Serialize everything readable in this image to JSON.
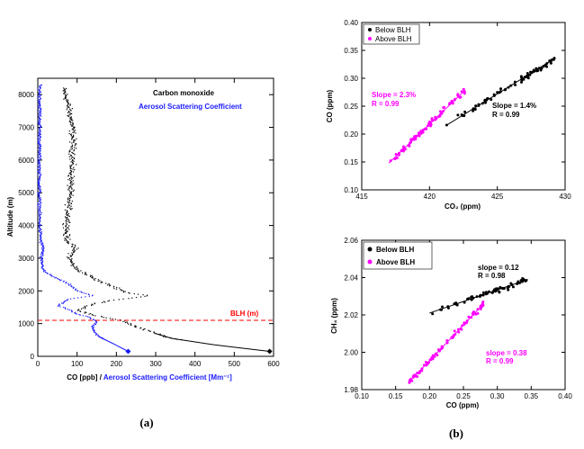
{
  "colors": {
    "black": "#000000",
    "blue": "#1a1aff",
    "magenta": "#ff00ff",
    "red": "#ff0000"
  },
  "chart_data": [
    {
      "type": "scatter",
      "panel_label": "(a)",
      "ylabel": "Altitude (m)",
      "xlabel_co": "CO [ppb]",
      "xlabel_sep": "/",
      "xlabel_aer": "Aerosol Scattering Coefficient [Mm⁻¹]",
      "xlim": [
        0,
        600
      ],
      "ylim": [
        0,
        8500
      ],
      "x_ticks": [
        0,
        100,
        200,
        300,
        400,
        500,
        600
      ],
      "y_ticks": [
        0,
        1000,
        2000,
        3000,
        4000,
        5000,
        6000,
        7000,
        8000
      ],
      "grid": false,
      "legend": {
        "placement": "top-right",
        "entries": [
          "Carbon monoxide",
          "Aerosol Scattering Coefficient"
        ]
      },
      "annotations": [
        {
          "text": "BLH (m)",
          "x": 520,
          "y": 1100,
          "color": "#ff0000"
        }
      ],
      "blh": 1100,
      "series": [
        {
          "name": "Carbon monoxide",
          "color": "#000000",
          "profile": [
            [
              8200,
              65
            ],
            [
              7800,
              75
            ],
            [
              7400,
              82
            ],
            [
              7000,
              88
            ],
            [
              6500,
              90
            ],
            [
              6000,
              88
            ],
            [
              5500,
              85
            ],
            [
              5000,
              82
            ],
            [
              4500,
              78
            ],
            [
              4000,
              75
            ],
            [
              3700,
              72
            ],
            [
              3500,
              78
            ],
            [
              3300,
              95
            ],
            [
              3000,
              80
            ],
            [
              2700,
              95
            ],
            [
              2500,
              125
            ],
            [
              2300,
              155
            ],
            [
              2100,
              200
            ],
            [
              1950,
              225
            ],
            [
              1850,
              285
            ],
            [
              1700,
              180
            ],
            [
              1550,
              130
            ],
            [
              1400,
              105
            ],
            [
              1250,
              140
            ],
            [
              1100,
              215
            ],
            [
              900,
              250
            ],
            [
              700,
              300
            ],
            [
              550,
              340
            ],
            [
              350,
              450
            ],
            [
              150,
              590
            ]
          ]
        },
        {
          "name": "Aerosol Scattering Coefficient",
          "color": "#1a1aff",
          "profile": [
            [
              8300,
              5
            ],
            [
              7000,
              5
            ],
            [
              6000,
              4
            ],
            [
              5000,
              4
            ],
            [
              4000,
              5
            ],
            [
              3500,
              8
            ],
            [
              3300,
              14
            ],
            [
              3000,
              8
            ],
            [
              2600,
              15
            ],
            [
              2400,
              45
            ],
            [
              2200,
              80
            ],
            [
              2000,
              100
            ],
            [
              1850,
              140
            ],
            [
              1750,
              80
            ],
            [
              1550,
              50
            ],
            [
              1400,
              85
            ],
            [
              1300,
              95
            ],
            [
              1200,
              130
            ],
            [
              1050,
              150
            ],
            [
              900,
              140
            ],
            [
              750,
              145
            ],
            [
              600,
              155
            ],
            [
              400,
              190
            ],
            [
              150,
              230
            ]
          ]
        }
      ]
    },
    {
      "type": "scatter",
      "xlabel": "CO₂ (ppm)",
      "ylabel": "CO (ppm)",
      "xlim": [
        415,
        430
      ],
      "ylim": [
        0.1,
        0.4
      ],
      "x_ticks": [
        415,
        420,
        425,
        430
      ],
      "y_ticks": [
        "0.10",
        "0.15",
        "0.20",
        "0.25",
        "0.30",
        "0.35",
        "0.40"
      ],
      "grid": false,
      "legend": {
        "placement": "top-left",
        "entries": [
          "Below BLH",
          "Above BLH"
        ]
      },
      "annotations": [
        {
          "text": "Slope = 2.3%",
          "color": "#ff00ff"
        },
        {
          "text": "R = 0.99",
          "color": "#ff00ff"
        },
        {
          "text": "Slope = 1.4%",
          "color": "#000000"
        },
        {
          "text": "R = 0.99",
          "color": "#000000"
        }
      ],
      "series": [
        {
          "name": "Below BLH",
          "color": "#000000",
          "fit": {
            "x": [
              421.2,
              429.2
            ],
            "y": [
              0.215,
              0.335
            ]
          },
          "x_range": [
            421,
            429.3
          ]
        },
        {
          "name": "Above BLH",
          "color": "#ff00ff",
          "fit": {
            "x": [
              417,
              422.6
            ],
            "y": [
              0.148,
              0.278
            ]
          },
          "x_range": [
            417,
            422.6
          ]
        }
      ]
    },
    {
      "type": "scatter",
      "panel_label": "(b)",
      "xlabel": "CO (ppm)",
      "ylabel": "CH₄ (ppm)",
      "xlim": [
        0.1,
        0.4
      ],
      "ylim": [
        1.98,
        2.06
      ],
      "x_ticks": [
        "0.10",
        "0.15",
        "0.20",
        "0.25",
        "0.30",
        "0.35",
        "0.40"
      ],
      "y_ticks": [
        "1.98",
        "2.00",
        "2.02",
        "2.04",
        "2.06"
      ],
      "grid": false,
      "legend": {
        "placement": "top-left",
        "entries": [
          "Below BLH",
          "Above BLH"
        ]
      },
      "annotations": [
        {
          "text": "slope = 0.12",
          "color": "#000000"
        },
        {
          "text": "R = 0.98",
          "color": "#000000"
        },
        {
          "text": "slope = 0.38",
          "color": "#ff00ff"
        },
        {
          "text": "R = 0.99",
          "color": "#ff00ff"
        }
      ],
      "series": [
        {
          "name": "Below BLH",
          "color": "#000000",
          "fit": {
            "x": [
              0.2,
              0.345
            ],
            "y": [
              2.021,
              2.039
            ]
          },
          "x_range": [
            0.19,
            0.345
          ]
        },
        {
          "name": "Above BLH",
          "color": "#ff00ff",
          "fit": {
            "x": [
              0.175,
              0.28
            ],
            "y": [
              1.986,
              2.026
            ]
          },
          "x_range": [
            0.17,
            0.28
          ]
        }
      ]
    }
  ]
}
